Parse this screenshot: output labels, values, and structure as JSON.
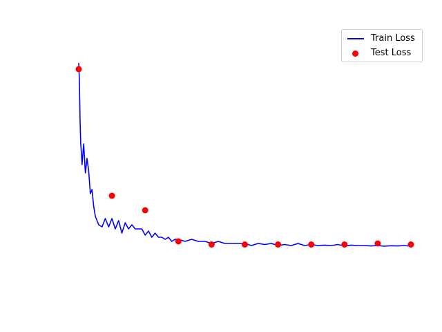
{
  "chart_data": {
    "type": "line",
    "title": "",
    "xlabel": "",
    "ylabel": "",
    "axes_visible": false,
    "grid": false,
    "legend_position": "top-right",
    "colors": {
      "train": "#0000ff",
      "test": "#ff0000"
    },
    "xlim": [
      0,
      10
    ],
    "ylim": [
      0,
      1.0
    ],
    "series": [
      {
        "name": "Train Loss",
        "kind": "line",
        "x": [
          0.0,
          0.02,
          0.04,
          0.06,
          0.08,
          0.1,
          0.15,
          0.2,
          0.25,
          0.3,
          0.35,
          0.4,
          0.45,
          0.5,
          0.6,
          0.7,
          0.8,
          0.9,
          1.0,
          1.1,
          1.2,
          1.3,
          1.4,
          1.5,
          1.6,
          1.7,
          1.8,
          1.9,
          2.0,
          2.1,
          2.2,
          2.3,
          2.4,
          2.5,
          2.6,
          2.7,
          2.8,
          2.9,
          3.0,
          3.2,
          3.4,
          3.6,
          3.8,
          4.0,
          4.2,
          4.4,
          4.6,
          4.8,
          5.0,
          5.2,
          5.4,
          5.6,
          5.8,
          6.0,
          6.2,
          6.4,
          6.6,
          6.8,
          7.0,
          7.2,
          7.4,
          7.6,
          7.8,
          8.0,
          8.2,
          8.4,
          8.6,
          8.8,
          9.0,
          9.2,
          9.4,
          9.6,
          9.8,
          10.0
        ],
        "y": [
          0.89,
          0.8,
          0.62,
          0.5,
          0.46,
          0.4,
          0.5,
          0.36,
          0.43,
          0.37,
          0.26,
          0.28,
          0.2,
          0.15,
          0.11,
          0.1,
          0.14,
          0.1,
          0.14,
          0.09,
          0.13,
          0.07,
          0.12,
          0.09,
          0.11,
          0.09,
          0.09,
          0.09,
          0.06,
          0.08,
          0.05,
          0.07,
          0.05,
          0.05,
          0.04,
          0.05,
          0.03,
          0.04,
          0.04,
          0.03,
          0.04,
          0.03,
          0.03,
          0.02,
          0.03,
          0.02,
          0.02,
          0.02,
          0.02,
          0.01,
          0.02,
          0.015,
          0.02,
          0.01,
          0.015,
          0.01,
          0.02,
          0.01,
          0.015,
          0.01,
          0.012,
          0.01,
          0.015,
          0.008,
          0.012,
          0.01,
          0.01,
          0.008,
          0.01,
          0.007,
          0.009,
          0.008,
          0.01,
          0.007
        ]
      },
      {
        "name": "Test Loss",
        "kind": "scatter",
        "x": [
          0,
          1,
          2,
          3,
          4,
          5,
          6,
          7,
          8,
          9,
          10
        ],
        "y": [
          0.86,
          0.25,
          0.18,
          0.03,
          0.015,
          0.015,
          0.015,
          0.015,
          0.015,
          0.02,
          0.015
        ]
      }
    ]
  },
  "legend": {
    "items": [
      {
        "label": "Train Loss"
      },
      {
        "label": "Test Loss"
      }
    ]
  }
}
